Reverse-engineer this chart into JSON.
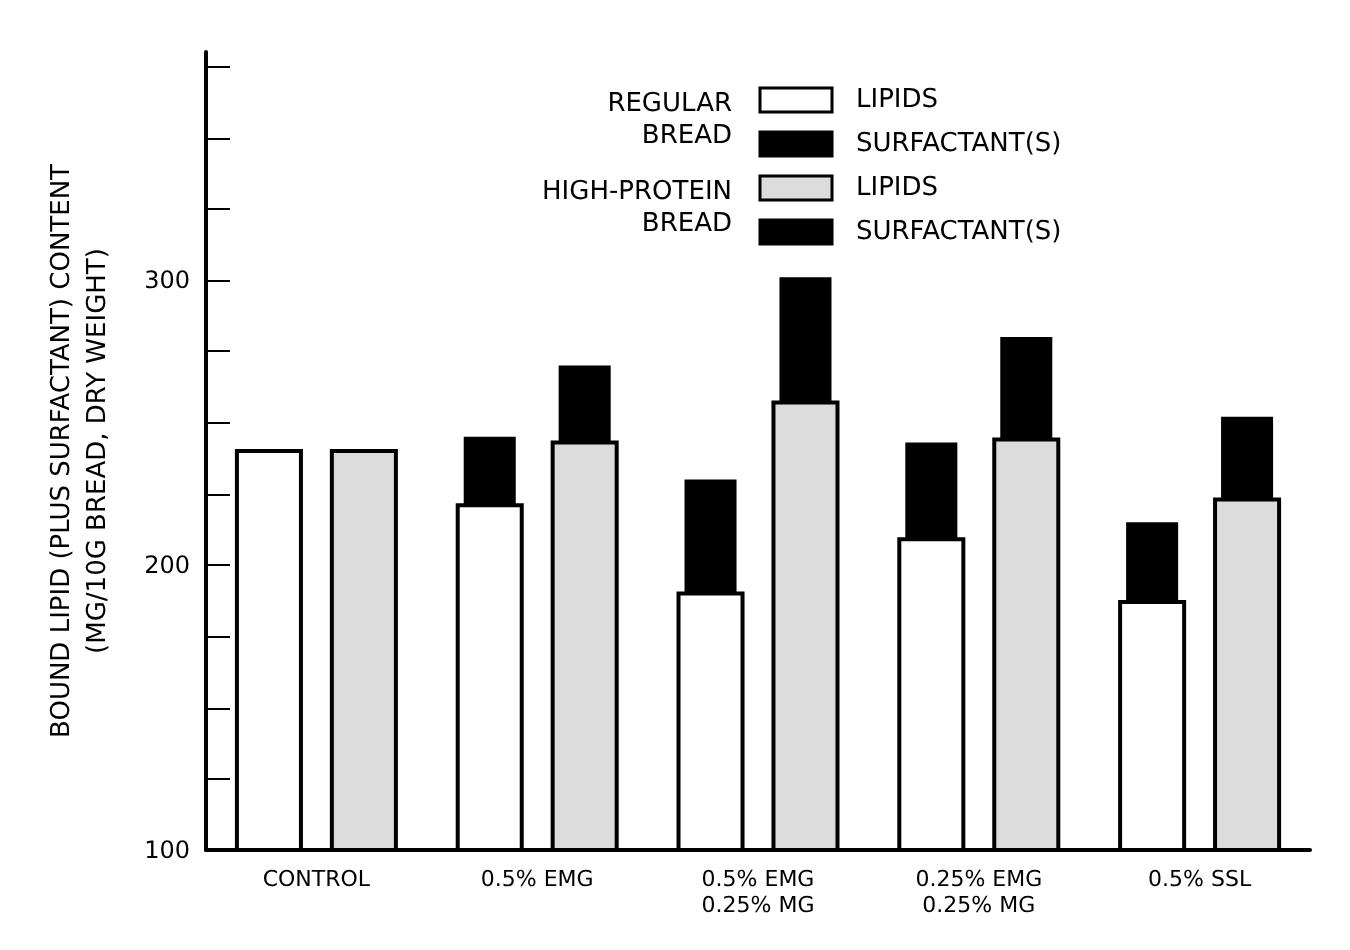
{
  "chart_data": {
    "type": "bar",
    "ylabel": "BOUND LIPID (PLUS SURFACTANT) CONTENT\n(MG/10G BREAD, DRY WEIGHT)",
    "categories": [
      "CONTROL",
      "0.5% EMG",
      "0.5% EMG\n0.25% MG",
      "0.25% EMG\n0.25% MG",
      "0.5% SSL"
    ],
    "series": [
      {
        "name": "LIPIDS",
        "color": "#ffffff",
        "values": [
          240,
          221,
          190,
          209,
          187
        ]
      },
      {
        "name": "SURFACTANT(S)",
        "color": "#000000",
        "values": [
          null,
          24,
          40,
          34,
          28
        ],
        "base": [
          null,
          221,
          190,
          209,
          187
        ]
      },
      {
        "name": "LIPIDS",
        "color": "#dcdcdc",
        "values": [
          240,
          243,
          257,
          244,
          223
        ]
      },
      {
        "name": "SURFACTANT(S)",
        "color": "#000000",
        "values": [
          null,
          27,
          44,
          36,
          29
        ],
        "base": [
          null,
          243,
          257,
          244,
          223
        ]
      }
    ],
    "annotations": [
      "REGULAR\nBREAD",
      "HIGH-PROTEIN\nBREAD"
    ],
    "ylim": [
      100,
      380
    ],
    "yticks": [
      100,
      {
        "value": 125,
        "label": null
      },
      {
        "value": 150,
        "label": null
      },
      {
        "value": 175,
        "label": null
      },
      200,
      {
        "value": 225,
        "label": null
      },
      {
        "value": 250,
        "label": null
      },
      {
        "value": 275,
        "label": null
      },
      300,
      {
        "value": 325,
        "label": null
      },
      {
        "value": 350,
        "label": null
      },
      {
        "value": 375,
        "label": null
      }
    ],
    "legend": "top",
    "grid": false
  }
}
